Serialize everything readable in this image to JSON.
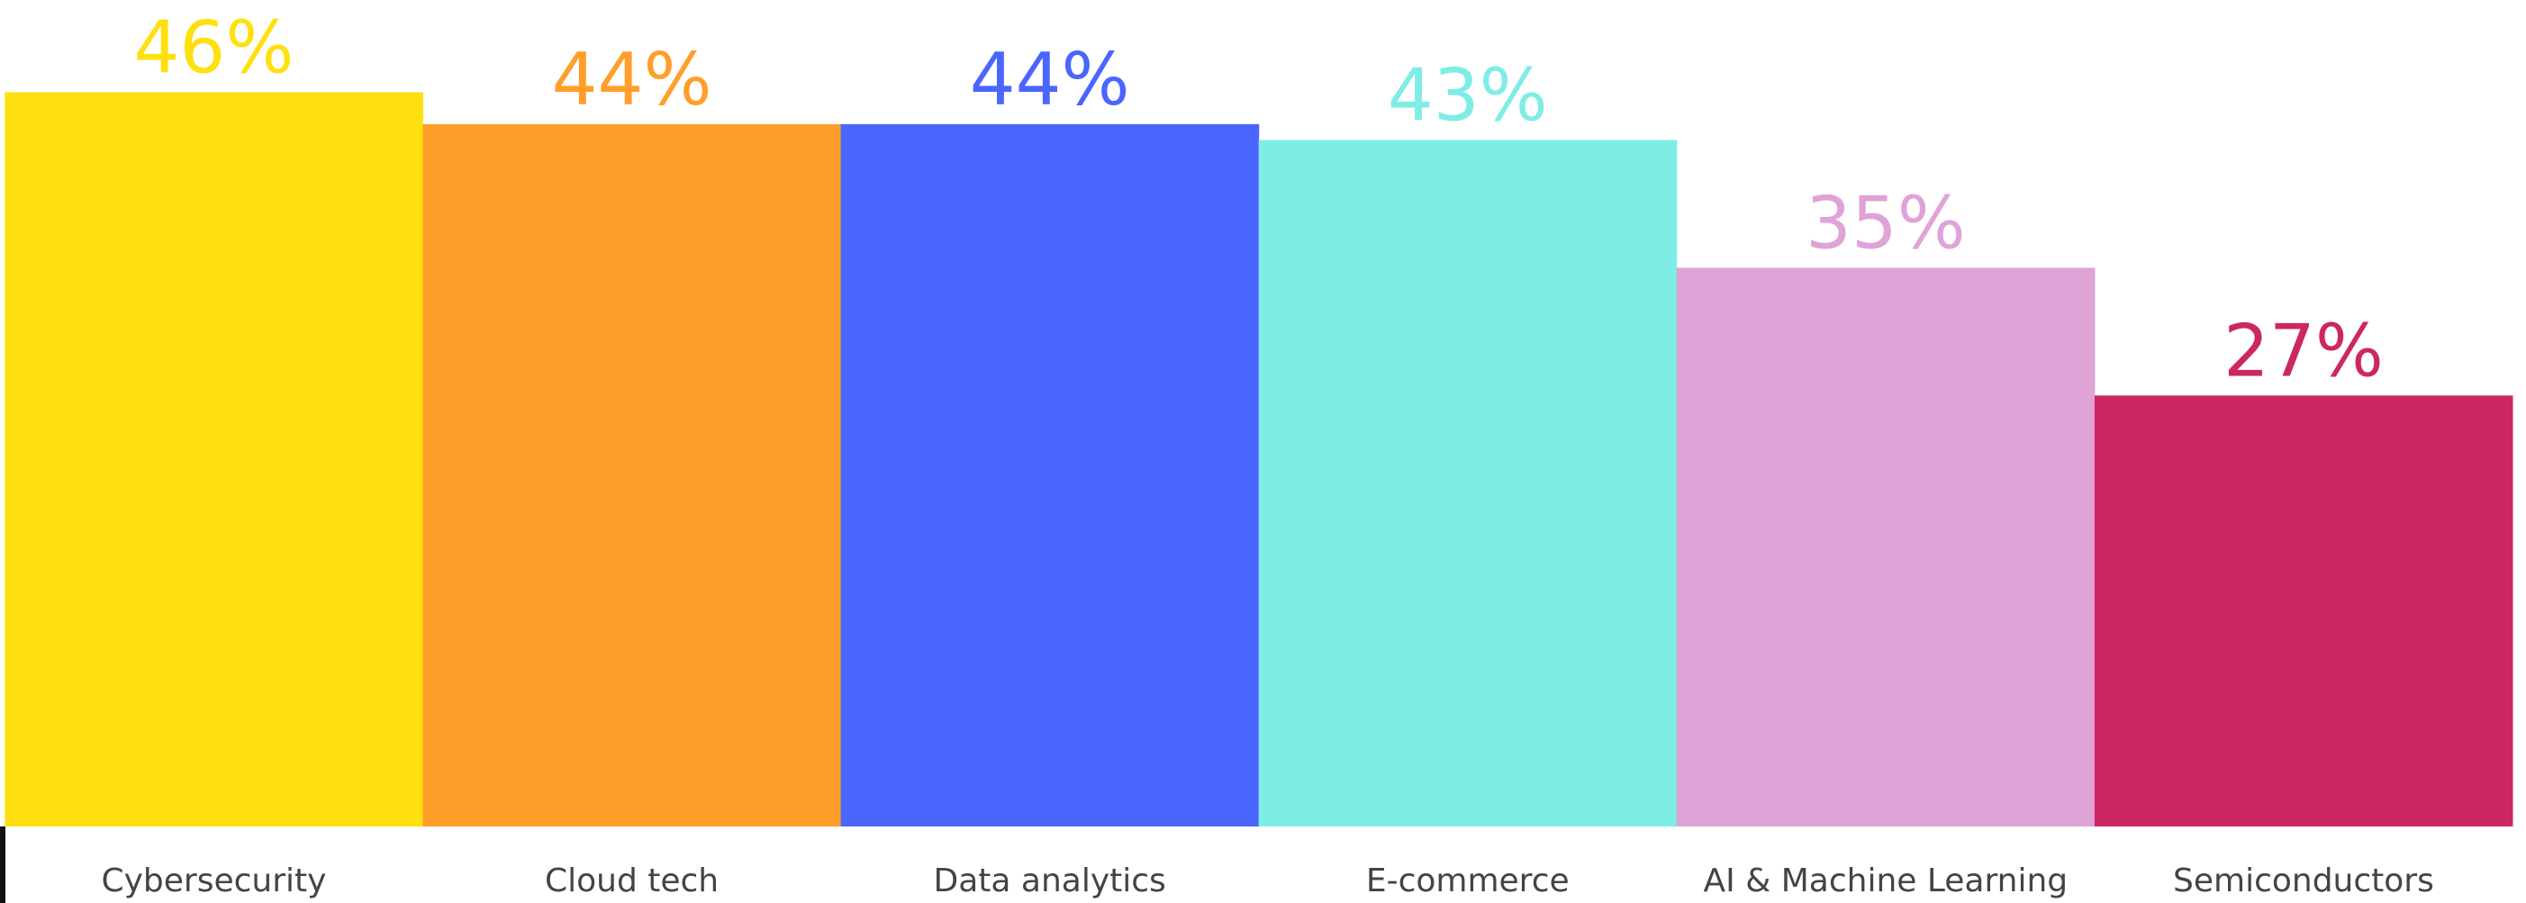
{
  "chart_data": {
    "type": "bar",
    "categories": [
      "Cybersecurity",
      "Cloud tech",
      "Data analytics",
      "E-commerce",
      "AI & Machine Learning",
      "Semiconductors"
    ],
    "values": [
      46,
      44,
      44,
      43,
      35,
      27
    ],
    "value_labels": [
      "46%",
      "44%",
      "44%",
      "43%",
      "35%",
      "27%"
    ],
    "colors": [
      "#FFE00F",
      "#FF9E2A",
      "#4A66FF",
      "#7EEDE6",
      "#DFA3D8",
      "#CC2763"
    ]
  }
}
